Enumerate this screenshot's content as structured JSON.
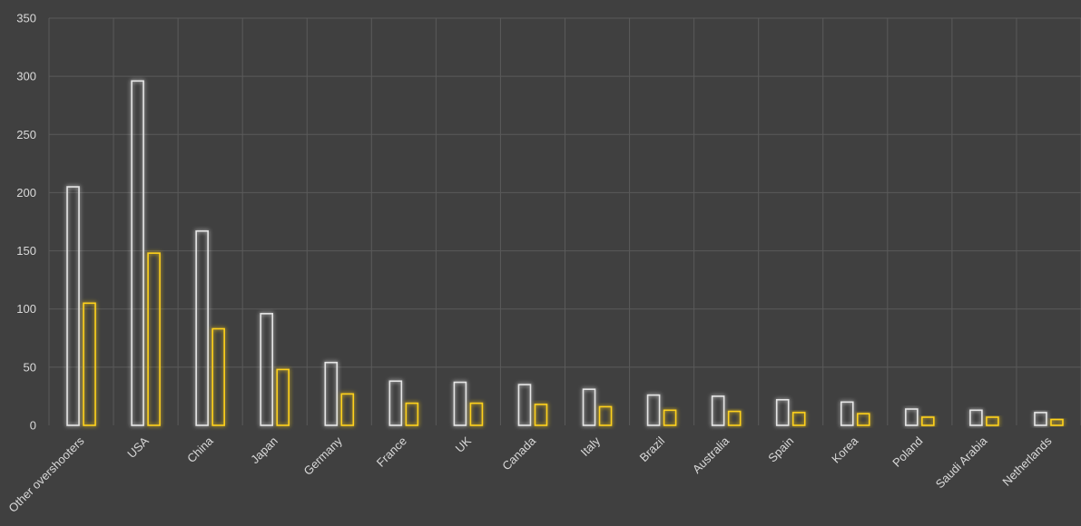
{
  "chart_data": {
    "type": "bar",
    "title": "",
    "xlabel": "",
    "ylabel": "",
    "ylim": [
      0,
      350
    ],
    "yticks": [
      0,
      50,
      100,
      150,
      200,
      250,
      300,
      350
    ],
    "grid": true,
    "legend": "none",
    "categories": [
      "Other overshooters",
      "USA",
      "China",
      "Japan",
      "Germany",
      "France",
      "UK",
      "Canada",
      "Italy",
      "Brazil",
      "Australia",
      "Spain",
      "Korea",
      "Poland",
      "Saudi Arabia",
      "Netherlands"
    ],
    "series": [
      {
        "color": "#e6e6e6",
        "values": [
          205,
          296,
          167,
          96,
          54,
          38,
          37,
          35,
          31,
          26,
          25,
          22,
          20,
          14,
          13,
          11
        ]
      },
      {
        "color": "#ffd21a",
        "values": [
          105,
          148,
          83,
          48,
          27,
          19,
          19,
          18,
          16,
          13,
          12,
          11,
          10,
          7,
          7,
          5
        ]
      }
    ]
  }
}
